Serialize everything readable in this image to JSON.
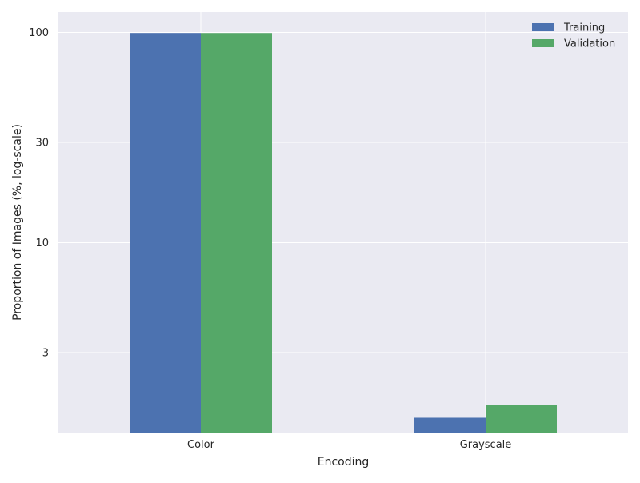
{
  "chart_data": {
    "type": "bar",
    "title": "",
    "xlabel": "Encoding",
    "ylabel": "Proportion of Images (%, log-scale)",
    "yscale": "log",
    "ylim": [
      1.25,
      125
    ],
    "yticks": [
      3,
      10,
      30,
      100
    ],
    "yticklabels": [
      "3",
      "10",
      "30",
      "100"
    ],
    "categories": [
      "Color",
      "Grayscale"
    ],
    "series": [
      {
        "name": "Training",
        "values": [
          99.37,
          1.47
        ],
        "color": "#4c72b0"
      },
      {
        "name": "Validation",
        "values": [
          99.34,
          1.69
        ],
        "color": "#55a868"
      }
    ],
    "grid": true,
    "legend_position": "top-right",
    "background": "#eaeaf2"
  }
}
